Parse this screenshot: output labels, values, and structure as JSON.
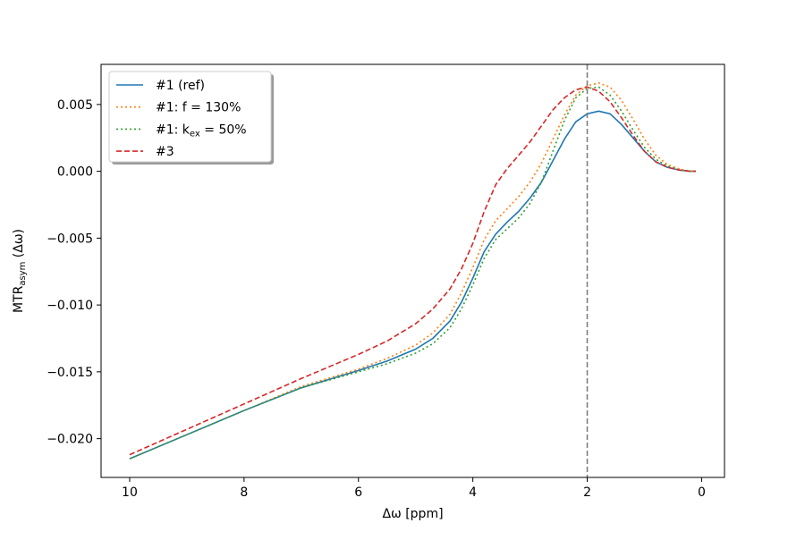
{
  "chart_data": {
    "type": "line",
    "xlabel": "Δω [ppm]",
    "ylabel_main": "MTR",
    "ylabel_sub": "asym",
    "ylabel_rest": " (Δω)",
    "xlim": [
      10.5,
      -0.4
    ],
    "ylim": [
      -0.0229,
      0.008
    ],
    "x_ticks": [
      10,
      8,
      6,
      4,
      2,
      0
    ],
    "x_tick_labels": [
      "10",
      "8",
      "6",
      "4",
      "2",
      "0"
    ],
    "y_ticks": [
      0.005,
      0.0,
      -0.005,
      -0.01,
      -0.015,
      -0.02
    ],
    "y_tick_labels": [
      "0.005",
      "0.000",
      "−0.005",
      "−0.010",
      "−0.015",
      "−0.020"
    ],
    "grid": false,
    "legend_position": "upper-left",
    "vertical_line": {
      "x": 2.0,
      "color": "#7f7f7f",
      "style": "dashed"
    },
    "series": [
      {
        "name": "#1 (ref)",
        "label_parts": [
          "#1 (ref)",
          "",
          ""
        ],
        "color": "#1f77b4",
        "style": "solid",
        "points": [
          [
            10,
            -0.0215
          ],
          [
            9,
            -0.0197
          ],
          [
            8,
            -0.0179
          ],
          [
            7,
            -0.0162
          ],
          [
            6,
            -0.0149
          ],
          [
            5.5,
            -0.0142
          ],
          [
            5,
            -0.0133
          ],
          [
            4.7,
            -0.0125
          ],
          [
            4.4,
            -0.0112
          ],
          [
            4.2,
            -0.0098
          ],
          [
            4,
            -0.008
          ],
          [
            3.8,
            -0.006
          ],
          [
            3.6,
            -0.0047
          ],
          [
            3.4,
            -0.0038
          ],
          [
            3.2,
            -0.003
          ],
          [
            3.0,
            -0.002
          ],
          [
            2.8,
            -0.0008
          ],
          [
            2.6,
            0.0008
          ],
          [
            2.4,
            0.0024
          ],
          [
            2.2,
            0.0037
          ],
          [
            2.0,
            0.0043
          ],
          [
            1.8,
            0.0045
          ],
          [
            1.6,
            0.0043
          ],
          [
            1.4,
            0.0035
          ],
          [
            1.2,
            0.0025
          ],
          [
            1.0,
            0.0015
          ],
          [
            0.8,
            0.0007
          ],
          [
            0.6,
            0.0003
          ],
          [
            0.4,
            0.0001
          ],
          [
            0.2,
            0.0
          ],
          [
            0.1,
            0.0
          ]
        ]
      },
      {
        "name": "#1: f = 130%",
        "label_parts": [
          "#1: f = 130%",
          "",
          ""
        ],
        "color": "#ff7f0e",
        "style": "dotted",
        "points": [
          [
            10,
            -0.0215
          ],
          [
            9,
            -0.0197
          ],
          [
            8,
            -0.0179
          ],
          [
            7,
            -0.0161
          ],
          [
            6,
            -0.0148
          ],
          [
            5.5,
            -0.014
          ],
          [
            5,
            -0.013
          ],
          [
            4.7,
            -0.0121
          ],
          [
            4.4,
            -0.0107
          ],
          [
            4.2,
            -0.0091
          ],
          [
            4,
            -0.0072
          ],
          [
            3.8,
            -0.0051
          ],
          [
            3.6,
            -0.0037
          ],
          [
            3.4,
            -0.0028
          ],
          [
            3.2,
            -0.0019
          ],
          [
            3.0,
            -0.0008
          ],
          [
            2.8,
            0.0006
          ],
          [
            2.6,
            0.0024
          ],
          [
            2.4,
            0.0042
          ],
          [
            2.2,
            0.0057
          ],
          [
            2.0,
            0.0064
          ],
          [
            1.8,
            0.0066
          ],
          [
            1.6,
            0.0063
          ],
          [
            1.4,
            0.0053
          ],
          [
            1.2,
            0.0039
          ],
          [
            1.0,
            0.0024
          ],
          [
            0.8,
            0.0012
          ],
          [
            0.6,
            0.0005
          ],
          [
            0.4,
            0.0002
          ],
          [
            0.2,
            0.0
          ],
          [
            0.1,
            0.0
          ]
        ]
      },
      {
        "name": "#1: kex = 50%",
        "label_parts": [
          "#1: k",
          "ex",
          " = 50%"
        ],
        "color": "#2ca02c",
        "style": "dotted",
        "points": [
          [
            10,
            -0.0215
          ],
          [
            9,
            -0.0197
          ],
          [
            8,
            -0.0179
          ],
          [
            7,
            -0.0162
          ],
          [
            6,
            -0.015
          ],
          [
            5.5,
            -0.0144
          ],
          [
            5,
            -0.0136
          ],
          [
            4.7,
            -0.0129
          ],
          [
            4.4,
            -0.0117
          ],
          [
            4.2,
            -0.0103
          ],
          [
            4,
            -0.0085
          ],
          [
            3.8,
            -0.0065
          ],
          [
            3.6,
            -0.0051
          ],
          [
            3.4,
            -0.0043
          ],
          [
            3.2,
            -0.0035
          ],
          [
            3.0,
            -0.0024
          ],
          [
            2.8,
            -0.0008
          ],
          [
            2.6,
            0.0015
          ],
          [
            2.4,
            0.0038
          ],
          [
            2.2,
            0.0055
          ],
          [
            2.0,
            0.0062
          ],
          [
            1.8,
            0.0063
          ],
          [
            1.6,
            0.0057
          ],
          [
            1.4,
            0.0045
          ],
          [
            1.2,
            0.0031
          ],
          [
            1.0,
            0.0018
          ],
          [
            0.8,
            0.0009
          ],
          [
            0.6,
            0.0004
          ],
          [
            0.4,
            0.0001
          ],
          [
            0.2,
            0.0
          ],
          [
            0.1,
            0.0
          ]
        ]
      },
      {
        "name": "#3",
        "label_parts": [
          "#3",
          "",
          ""
        ],
        "color": "#d62728",
        "style": "dashed",
        "points": [
          [
            10,
            -0.0212
          ],
          [
            9,
            -0.0193
          ],
          [
            8,
            -0.0174
          ],
          [
            7,
            -0.0155
          ],
          [
            6,
            -0.0137
          ],
          [
            5.5,
            -0.0127
          ],
          [
            5,
            -0.0114
          ],
          [
            4.7,
            -0.0103
          ],
          [
            4.4,
            -0.0088
          ],
          [
            4.2,
            -0.0073
          ],
          [
            4,
            -0.0054
          ],
          [
            3.8,
            -0.003
          ],
          [
            3.6,
            -0.001
          ],
          [
            3.4,
            0.0002
          ],
          [
            3.2,
            0.0012
          ],
          [
            3.0,
            0.0022
          ],
          [
            2.8,
            0.0034
          ],
          [
            2.6,
            0.0046
          ],
          [
            2.4,
            0.0055
          ],
          [
            2.2,
            0.0061
          ],
          [
            2.0,
            0.0063
          ],
          [
            1.8,
            0.006
          ],
          [
            1.6,
            0.0052
          ],
          [
            1.4,
            0.004
          ],
          [
            1.2,
            0.0027
          ],
          [
            1.0,
            0.0015
          ],
          [
            0.8,
            0.0007
          ],
          [
            0.6,
            0.0003
          ],
          [
            0.4,
            0.0001
          ],
          [
            0.2,
            0.0
          ],
          [
            0.1,
            0.0
          ]
        ]
      }
    ]
  }
}
